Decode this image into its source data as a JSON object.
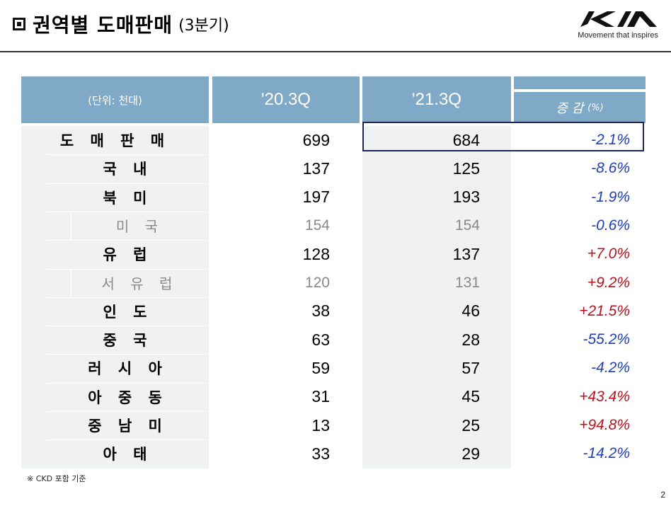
{
  "header": {
    "title": "권역별 도매판매",
    "subtitle": "(3분기)"
  },
  "logo": {
    "tagline": "Movement that inspires"
  },
  "table": {
    "unit_label": "(단위: 천대)",
    "col_prev": "'20.3Q",
    "col_curr": "'21.3Q",
    "col_change": "증 감",
    "col_change_unit": "(%)",
    "rows": [
      {
        "label": "도 매 판 매",
        "prev": "699",
        "curr": "684",
        "change": "-2.1%",
        "level": 0
      },
      {
        "label": "국   내",
        "prev": "137",
        "curr": "125",
        "change": "-8.6%",
        "level": 1
      },
      {
        "label": "북   미",
        "prev": "197",
        "curr": "193",
        "change": "-1.9%",
        "level": 1
      },
      {
        "label": "미   국",
        "prev": "154",
        "curr": "154",
        "change": "-0.6%",
        "level": 2
      },
      {
        "label": "유   럽",
        "prev": "128",
        "curr": "137",
        "change": "+7.0%",
        "level": 1
      },
      {
        "label": "서 유 럽",
        "prev": "120",
        "curr": "131",
        "change": "+9.2%",
        "level": 2
      },
      {
        "label": "인   도",
        "prev": "38",
        "curr": "46",
        "change": "+21.5%",
        "level": 1
      },
      {
        "label": "중   국",
        "prev": "63",
        "curr": "28",
        "change": "-55.2%",
        "level": 1
      },
      {
        "label": "러 시 아",
        "prev": "59",
        "curr": "57",
        "change": "-4.2%",
        "level": 1
      },
      {
        "label": "아 중 동",
        "prev": "31",
        "curr": "45",
        "change": "+43.4%",
        "level": 1
      },
      {
        "label": "중 남 미",
        "prev": "13",
        "curr": "25",
        "change": "+94.8%",
        "level": 1
      },
      {
        "label": "아   태",
        "prev": "33",
        "curr": "29",
        "change": "-14.2%",
        "level": 1
      }
    ]
  },
  "colors": {
    "header_bg": "#7fa9c7",
    "negative": "#1f3fb3",
    "positive": "#b4141d",
    "highlight_border": "#1b2a55"
  },
  "footnote": "※  CKD 포함 기준",
  "page_number": "2"
}
